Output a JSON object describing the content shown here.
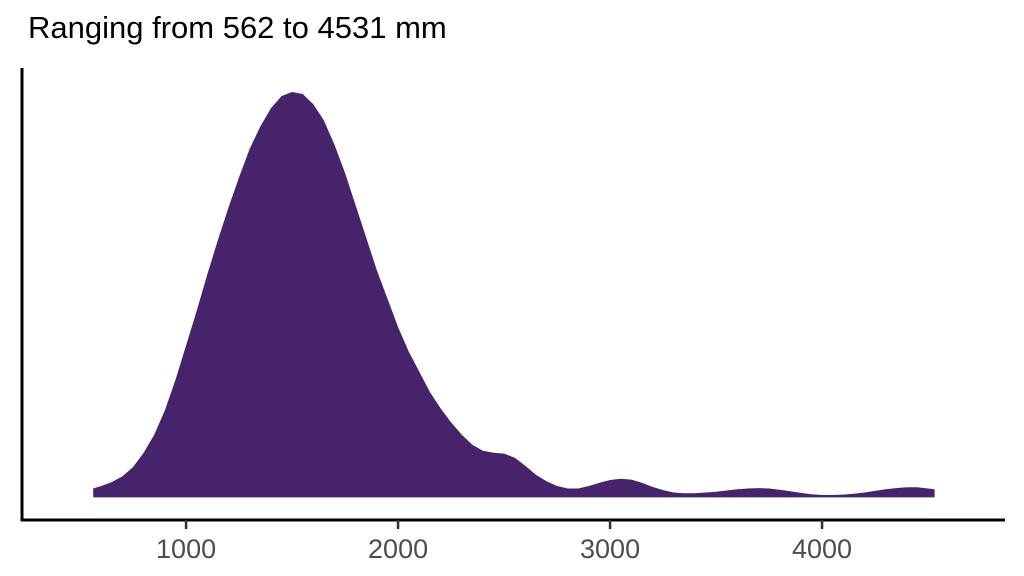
{
  "chart_data": {
    "type": "area",
    "title": "Ranging from 562 to 4531 mm",
    "subtitle": "",
    "xlabel": "",
    "ylabel": "",
    "x_ticks": [
      1000,
      2000,
      3000,
      4000
    ],
    "x_tick_labels": [
      "1000",
      "2000",
      "3000",
      "4000"
    ],
    "xlim": [
      226,
      4863
    ],
    "ylim": [
      0,
      1.05
    ],
    "grid": false,
    "legend_position": "none",
    "range_min_mm": 562,
    "range_max_mm": 4531,
    "fill_color": "#46236b",
    "axis_color": "#000000",
    "tick_color": "#333333",
    "tick_label_color": "#4d4d4d",
    "density_points": [
      [
        562,
        0.022
      ],
      [
        600,
        0.028
      ],
      [
        650,
        0.038
      ],
      [
        700,
        0.052
      ],
      [
        750,
        0.075
      ],
      [
        800,
        0.11
      ],
      [
        850,
        0.155
      ],
      [
        900,
        0.215
      ],
      [
        950,
        0.29
      ],
      [
        1000,
        0.375
      ],
      [
        1050,
        0.46
      ],
      [
        1100,
        0.55
      ],
      [
        1150,
        0.635
      ],
      [
        1200,
        0.715
      ],
      [
        1250,
        0.79
      ],
      [
        1300,
        0.86
      ],
      [
        1350,
        0.915
      ],
      [
        1400,
        0.96
      ],
      [
        1450,
        0.99
      ],
      [
        1500,
        1.0
      ],
      [
        1550,
        0.995
      ],
      [
        1600,
        0.97
      ],
      [
        1650,
        0.93
      ],
      [
        1700,
        0.87
      ],
      [
        1750,
        0.8
      ],
      [
        1800,
        0.72
      ],
      [
        1850,
        0.64
      ],
      [
        1900,
        0.56
      ],
      [
        1950,
        0.49
      ],
      [
        2000,
        0.42
      ],
      [
        2050,
        0.36
      ],
      [
        2100,
        0.31
      ],
      [
        2150,
        0.26
      ],
      [
        2200,
        0.22
      ],
      [
        2250,
        0.185
      ],
      [
        2300,
        0.155
      ],
      [
        2350,
        0.13
      ],
      [
        2400,
        0.115
      ],
      [
        2450,
        0.11
      ],
      [
        2500,
        0.108
      ],
      [
        2550,
        0.098
      ],
      [
        2600,
        0.078
      ],
      [
        2650,
        0.056
      ],
      [
        2700,
        0.04
      ],
      [
        2750,
        0.028
      ],
      [
        2800,
        0.022
      ],
      [
        2850,
        0.022
      ],
      [
        2900,
        0.028
      ],
      [
        2950,
        0.036
      ],
      [
        3000,
        0.043
      ],
      [
        3050,
        0.046
      ],
      [
        3100,
        0.044
      ],
      [
        3150,
        0.036
      ],
      [
        3200,
        0.026
      ],
      [
        3250,
        0.018
      ],
      [
        3300,
        0.012
      ],
      [
        3350,
        0.01
      ],
      [
        3400,
        0.01
      ],
      [
        3450,
        0.012
      ],
      [
        3500,
        0.014
      ],
      [
        3550,
        0.017
      ],
      [
        3600,
        0.02
      ],
      [
        3650,
        0.022
      ],
      [
        3700,
        0.023
      ],
      [
        3750,
        0.022
      ],
      [
        3800,
        0.019
      ],
      [
        3850,
        0.015
      ],
      [
        3900,
        0.011
      ],
      [
        3950,
        0.008
      ],
      [
        4000,
        0.006
      ],
      [
        4050,
        0.006
      ],
      [
        4100,
        0.007
      ],
      [
        4150,
        0.009
      ],
      [
        4200,
        0.012
      ],
      [
        4250,
        0.016
      ],
      [
        4300,
        0.02
      ],
      [
        4350,
        0.023
      ],
      [
        4400,
        0.025
      ],
      [
        4450,
        0.025
      ],
      [
        4500,
        0.022
      ],
      [
        4531,
        0.02
      ]
    ]
  }
}
